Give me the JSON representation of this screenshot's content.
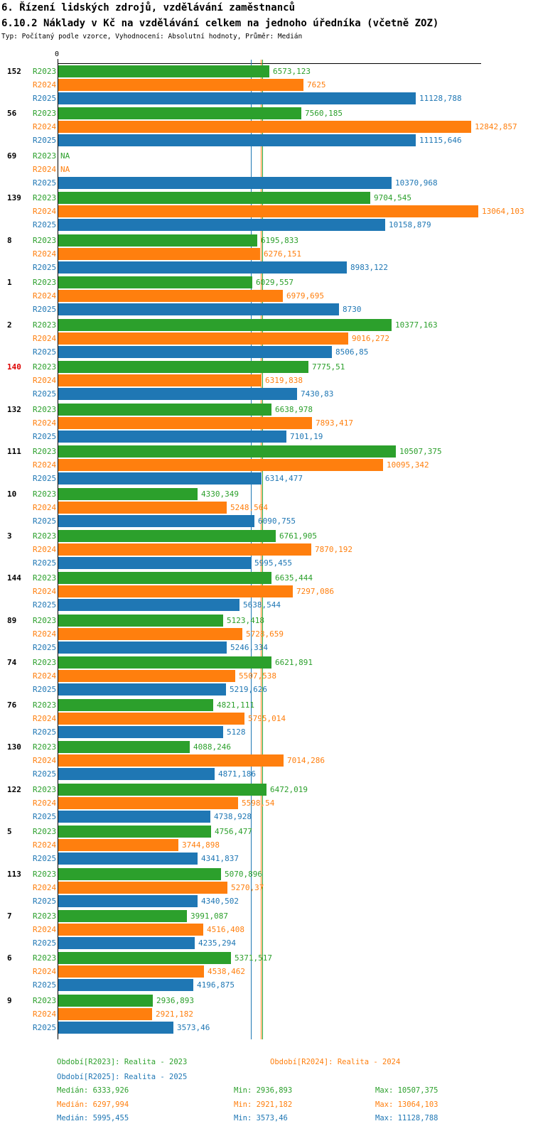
{
  "header": {
    "title": "6. Řízení lidských zdrojů, vzdělávání zaměstnanců",
    "subtitle": "6.10.2 Náklady v Kč na vzdělávání celkem na jednoho úředníka (včetně ZOZ)",
    "meta": "Typ: Počítaný podle vzorce, Vyhodnocení: Absolutní hodnoty, Průměr: Medián"
  },
  "colors": {
    "R2023": "#2ca02c",
    "R2024": "#ff7f0e",
    "R2025": "#1f77b4",
    "highlight_id": "#dd0000",
    "normal_id": "#000000",
    "axis": "#000000"
  },
  "axis": {
    "zero_label": "0"
  },
  "chart_data": {
    "type": "bar",
    "orientation": "horizontal",
    "xlim": [
      0,
      13064.103
    ],
    "grid": false,
    "series_names": [
      "R2023",
      "R2024",
      "R2025"
    ],
    "na_text": "NA",
    "groups": [
      {
        "id": "152",
        "highlight": false,
        "values": [
          6573.123,
          7625,
          11128.788
        ],
        "labels": [
          "6573,123",
          "7625",
          "11128,788"
        ]
      },
      {
        "id": "56",
        "highlight": false,
        "values": [
          7560.185,
          12842.857,
          11115.646
        ],
        "labels": [
          "7560,185",
          "12842,857",
          "11115,646"
        ]
      },
      {
        "id": "69",
        "highlight": false,
        "values": [
          null,
          null,
          10370.968
        ],
        "labels": [
          "NA",
          "NA",
          "10370,968"
        ]
      },
      {
        "id": "139",
        "highlight": false,
        "values": [
          9704.545,
          13064.103,
          10158.879
        ],
        "labels": [
          "9704,545",
          "13064,103",
          "10158,879"
        ]
      },
      {
        "id": "8",
        "highlight": false,
        "values": [
          6195.833,
          6276.151,
          8983.122
        ],
        "labels": [
          "6195,833",
          "6276,151",
          "8983,122"
        ]
      },
      {
        "id": "1",
        "highlight": false,
        "values": [
          6029.557,
          6979.695,
          8730
        ],
        "labels": [
          "6029,557",
          "6979,695",
          "8730"
        ]
      },
      {
        "id": "2",
        "highlight": false,
        "values": [
          10377.163,
          9016.272,
          8506.85
        ],
        "labels": [
          "10377,163",
          "9016,272",
          "8506,85"
        ]
      },
      {
        "id": "140",
        "highlight": true,
        "values": [
          7775.51,
          6319.838,
          7430.83
        ],
        "labels": [
          "7775,51",
          "6319,838",
          "7430,83"
        ]
      },
      {
        "id": "132",
        "highlight": false,
        "values": [
          6638.978,
          7893.417,
          7101.19
        ],
        "labels": [
          "6638,978",
          "7893,417",
          "7101,19"
        ]
      },
      {
        "id": "111",
        "highlight": false,
        "values": [
          10507.375,
          10095.342,
          6314.477
        ],
        "labels": [
          "10507,375",
          "10095,342",
          "6314,477"
        ]
      },
      {
        "id": "10",
        "highlight": false,
        "values": [
          4330.349,
          5248.564,
          6090.755
        ],
        "labels": [
          "4330,349",
          "5248,564",
          "6090,755"
        ]
      },
      {
        "id": "3",
        "highlight": false,
        "values": [
          6761.905,
          7870.192,
          5995.455
        ],
        "labels": [
          "6761,905",
          "7870,192",
          "5995,455"
        ]
      },
      {
        "id": "144",
        "highlight": false,
        "values": [
          6635.444,
          7297.086,
          5638.544
        ],
        "labels": [
          "6635,444",
          "7297,086",
          "5638,544"
        ]
      },
      {
        "id": "89",
        "highlight": false,
        "values": [
          5123.418,
          5728.659,
          5246.334
        ],
        "labels": [
          "5123,418",
          "5728,659",
          "5246,334"
        ]
      },
      {
        "id": "74",
        "highlight": false,
        "values": [
          6621.891,
          5507.538,
          5219.626
        ],
        "labels": [
          "6621,891",
          "5507,538",
          "5219,626"
        ]
      },
      {
        "id": "76",
        "highlight": false,
        "values": [
          4821.111,
          5795.014,
          5128
        ],
        "labels": [
          "4821,111",
          "5795,014",
          "5128"
        ]
      },
      {
        "id": "130",
        "highlight": false,
        "values": [
          4088.246,
          7014.286,
          4871.186
        ],
        "labels": [
          "4088,246",
          "7014,286",
          "4871,186"
        ]
      },
      {
        "id": "122",
        "highlight": false,
        "values": [
          6472.019,
          5598.54,
          4738.928
        ],
        "labels": [
          "6472,019",
          "5598,54",
          "4738,928"
        ]
      },
      {
        "id": "5",
        "highlight": false,
        "values": [
          4756.477,
          3744.898,
          4341.837
        ],
        "labels": [
          "4756,477",
          "3744,898",
          "4341,837"
        ]
      },
      {
        "id": "113",
        "highlight": false,
        "values": [
          5070.896,
          5270.37,
          4340.502
        ],
        "labels": [
          "5070,896",
          "5270,37",
          "4340,502"
        ]
      },
      {
        "id": "7",
        "highlight": false,
        "values": [
          3991.087,
          4516.408,
          4235.294
        ],
        "labels": [
          "3991,087",
          "4516,408",
          "4235,294"
        ]
      },
      {
        "id": "6",
        "highlight": false,
        "values": [
          5371.517,
          4538.462,
          4196.875
        ],
        "labels": [
          "5371,517",
          "4538,462",
          "4196,875"
        ]
      },
      {
        "id": "9",
        "highlight": false,
        "values": [
          2936.893,
          2921.182,
          3573.46
        ],
        "labels": [
          "2936,893",
          "2921,182",
          "3573,46"
        ]
      }
    ],
    "medians": {
      "R2023": 6333.926,
      "R2024": 6297.994,
      "R2025": 5995.455
    }
  },
  "legend": {
    "r2023": "Období[R2023]: Realita - 2023",
    "r2024": "Období[R2024]: Realita - 2024",
    "r2025": "Období[R2025]: Realita - 2025"
  },
  "stats": {
    "r2023": {
      "median": "Medián: 6333,926",
      "min": "Min: 2936,893",
      "max": "Max: 10507,375"
    },
    "r2024": {
      "median": "Medián: 6297,994",
      "min": "Min: 2921,182",
      "max": "Max: 13064,103"
    },
    "r2025": {
      "median": "Medián: 5995,455",
      "min": "Min: 3573,46",
      "max": "Max: 11128,788"
    }
  }
}
